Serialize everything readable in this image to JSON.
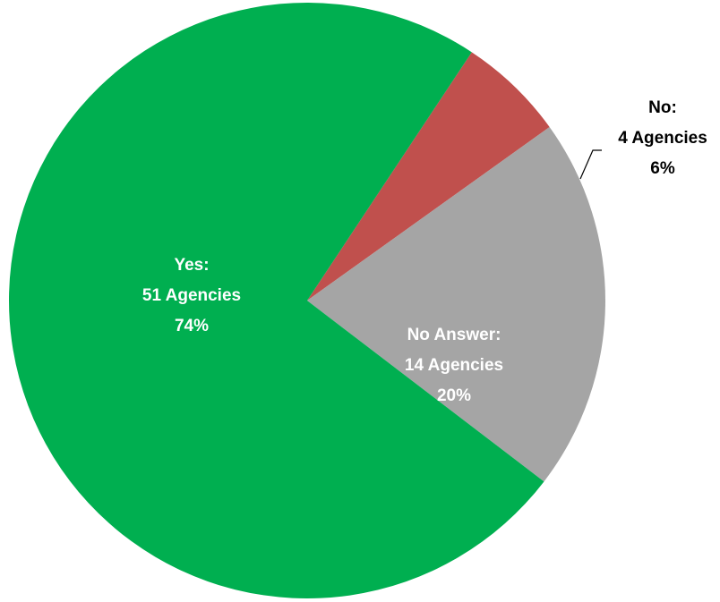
{
  "chart_data": {
    "type": "pie",
    "slices": [
      {
        "key": "yes",
        "label": "Yes:",
        "count_text": "51 Agencies",
        "pct_text": "74%",
        "value": 51,
        "color": "#00AF50",
        "text_color": "#FFFFFF"
      },
      {
        "key": "no",
        "label": "No:",
        "count_text": "4 Agencies",
        "pct_text": "6%",
        "value": 4,
        "color": "#C0504D",
        "text_color": "#000000"
      },
      {
        "key": "no-answer",
        "label": "No Answer:",
        "count_text": "14 Agencies",
        "pct_text": "20%",
        "value": 14,
        "color": "#A5A5A5",
        "text_color": "#FFFFFF"
      }
    ]
  }
}
